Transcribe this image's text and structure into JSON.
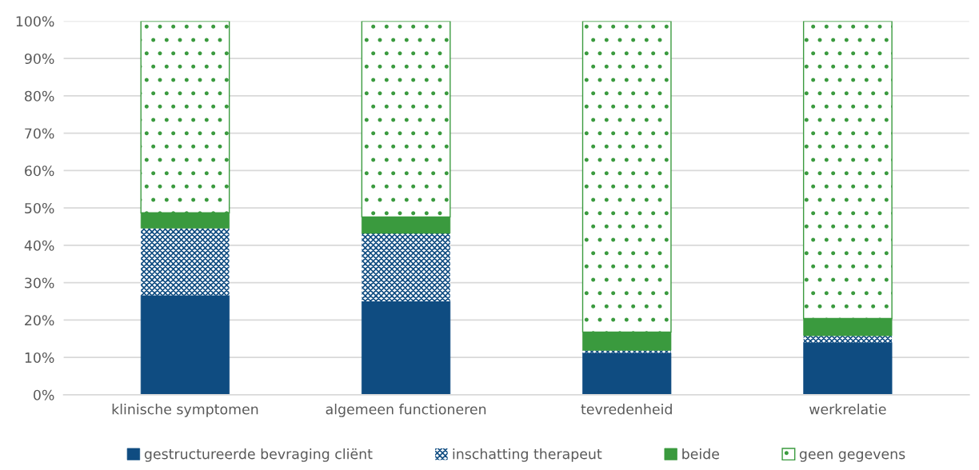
{
  "chart_data": {
    "type": "bar",
    "stacked": true,
    "categories": [
      "klinische symptomen",
      "algemeen functioneren",
      "tevredenheid",
      "werkrelatie"
    ],
    "series": [
      {
        "name": "gestructureerde bevraging cliënt",
        "color": "#0f4c81",
        "values": [
          26.6,
          25.0,
          11.2,
          14.0
        ]
      },
      {
        "name": "inschatting therapeut",
        "color": "#0f4c81",
        "values": [
          18.0,
          18.2,
          0.7,
          1.8
        ]
      },
      {
        "name": "beide",
        "color": "#3a9a3e",
        "values": [
          4.1,
          4.4,
          4.9,
          4.6
        ]
      },
      {
        "name": "geen gegevens",
        "color": "#3a9a3e",
        "values": [
          51.3,
          52.4,
          83.2,
          79.6
        ]
      }
    ],
    "ylim": [
      0,
      100
    ],
    "yticks": [
      {
        "value": 0,
        "label": "0%"
      },
      {
        "value": 10,
        "label": "10%"
      },
      {
        "value": 20,
        "label": "20%"
      },
      {
        "value": 30,
        "label": "30%"
      },
      {
        "value": 40,
        "label": "40%"
      },
      {
        "value": 50,
        "label": "50%"
      },
      {
        "value": 60,
        "label": "60%"
      },
      {
        "value": 70,
        "label": "70%"
      },
      {
        "value": 80,
        "label": "80%"
      },
      {
        "value": 90,
        "label": "90%"
      },
      {
        "value": 100,
        "label": "100%"
      }
    ],
    "grid": "y",
    "legend": "bottom"
  }
}
